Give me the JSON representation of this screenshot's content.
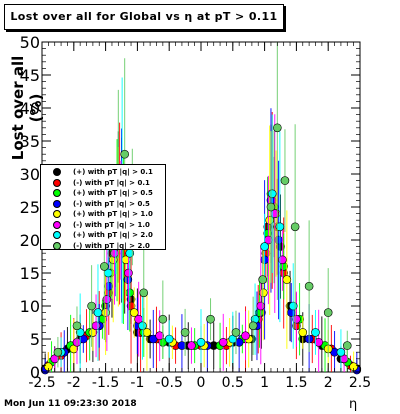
{
  "title": "Lost over all for Global vs   η at pT > 0.11",
  "timestamp": "Mon Jun 11 09:23:30 2018",
  "chart_data": {
    "type": "scatter",
    "xlabel": "η",
    "ylabel": "Lost over all (%)",
    "xlim": [
      -2.5,
      2.5
    ],
    "ylim": [
      0,
      50
    ],
    "xticks": [
      "-2.5",
      "-2",
      "-1.5",
      "-1",
      "-0.5",
      "0",
      "0.5",
      "1",
      "1.5",
      "2",
      "2.5"
    ],
    "yticks": [
      "0",
      "5",
      "10",
      "15",
      "20",
      "25",
      "30",
      "35",
      "40",
      "45",
      "50"
    ],
    "grid": false,
    "legend_position": "left",
    "series": [
      {
        "name": "(+) with pT |q| > 0.1",
        "color": "#000000",
        "x": [
          -2.45,
          -2.3,
          -2.1,
          -1.9,
          -1.7,
          -1.5,
          -1.4,
          -1.3,
          -1.25,
          -1.2,
          -1.1,
          -1.0,
          -0.8,
          -0.5,
          -0.2,
          0.2,
          0.5,
          0.8,
          0.95,
          1.05,
          1.1,
          1.15,
          1.25,
          1.4,
          1.6,
          1.9,
          2.2,
          2.45
        ],
        "y": [
          0.5,
          2,
          3.5,
          5,
          6,
          10,
          18,
          25,
          23,
          19,
          11,
          6,
          5,
          4.5,
          4,
          4,
          4.5,
          5,
          9,
          22,
          27,
          25,
          19,
          10,
          5,
          4,
          2,
          0.5
        ]
      },
      {
        "name": "(-) with pT |q| > 0.1",
        "color": "#ff0000",
        "x": [
          -2.4,
          -2.2,
          -2.0,
          -1.8,
          -1.6,
          -1.45,
          -1.35,
          -1.28,
          -1.2,
          -1.1,
          -0.95,
          -0.7,
          -0.4,
          0.0,
          0.4,
          0.7,
          0.9,
          1.02,
          1.12,
          1.2,
          1.3,
          1.5,
          1.75,
          2.05,
          2.35
        ],
        "y": [
          1,
          2.5,
          4,
          5.5,
          7,
          12,
          20,
          24,
          18,
          10,
          6,
          5,
          4,
          4,
          4,
          5,
          8,
          18,
          26,
          22,
          15,
          7,
          5,
          3.5,
          1
        ]
      },
      {
        "name": "(+) with pT |q| > 0.5",
        "color": "#00ff00",
        "x": [
          -2.35,
          -2.05,
          -1.75,
          -1.55,
          -1.42,
          -1.32,
          -1.22,
          -1.12,
          -0.9,
          -0.6,
          -0.1,
          0.3,
          0.65,
          0.92,
          1.05,
          1.15,
          1.3,
          1.55,
          1.95,
          2.3
        ],
        "y": [
          1.5,
          4,
          6,
          8,
          15,
          23,
          20,
          12,
          6,
          4.5,
          4,
          4,
          5,
          9,
          21,
          25,
          16,
          8,
          4,
          1.5
        ]
      },
      {
        "name": "(-) with pT |q| > 0.5",
        "color": "#0000ff",
        "x": [
          -2.45,
          -2.15,
          -1.85,
          -1.6,
          -1.45,
          -1.35,
          -1.25,
          -1.15,
          -1.0,
          -0.75,
          -0.3,
          0.1,
          0.6,
          0.88,
          1.0,
          1.1,
          1.22,
          1.42,
          1.7,
          2.1,
          2.45
        ],
        "y": [
          0.3,
          3,
          5,
          7,
          13,
          21,
          24,
          14,
          7,
          5,
          4,
          4,
          4.5,
          7,
          17,
          26,
          20,
          9,
          5,
          3,
          0.3
        ]
      },
      {
        "name": "(+) with pT |q| > 1.0",
        "color": "#ffff00",
        "x": [
          -2.4,
          -2.0,
          -1.7,
          -1.5,
          -1.38,
          -1.3,
          -1.18,
          -1.05,
          -0.85,
          -0.45,
          0.05,
          0.45,
          0.75,
          0.98,
          1.08,
          1.18,
          1.35,
          1.6,
          2.0,
          2.4
        ],
        "y": [
          0.8,
          3.5,
          6,
          9,
          17,
          22,
          17,
          9,
          6,
          4.5,
          4,
          4.5,
          5,
          12,
          23,
          24,
          14,
          6,
          3.5,
          0.8
        ]
      },
      {
        "name": "(-) with pT |q| > 1.0",
        "color": "#ff00ff",
        "x": [
          -2.3,
          -1.95,
          -1.65,
          -1.48,
          -1.36,
          -1.26,
          -1.14,
          -0.98,
          -0.65,
          -0.15,
          0.35,
          0.7,
          0.94,
          1.06,
          1.16,
          1.28,
          1.5,
          1.85,
          2.25
        ],
        "y": [
          2,
          4.5,
          7,
          11,
          18,
          23,
          15,
          8,
          5.5,
          4,
          4.5,
          5.5,
          10,
          20,
          24,
          17,
          8,
          4.5,
          2
        ]
      },
      {
        "name": "(+) with pT |q| > 2.0",
        "color": "#00ffff",
        "x": [
          -2.2,
          -1.9,
          -1.62,
          -1.46,
          -1.34,
          -1.24,
          -1.12,
          -0.92,
          -0.5,
          0.0,
          0.5,
          0.85,
          1.0,
          1.12,
          1.24,
          1.45,
          1.8,
          2.2
        ],
        "y": [
          3,
          6,
          9,
          15,
          22,
          26,
          18,
          7,
          5,
          4.5,
          5,
          8,
          19,
          27,
          22,
          10,
          6,
          3
        ]
      },
      {
        "name": "(-) with pT |q| > 2.0",
        "color": "#66cc66",
        "x": [
          -2.25,
          -1.95,
          -1.72,
          -1.52,
          -1.4,
          -1.3,
          -1.2,
          -1.08,
          -0.9,
          -0.6,
          -0.25,
          0.15,
          0.55,
          0.82,
          0.97,
          1.1,
          1.2,
          1.32,
          1.48,
          1.7,
          2.0,
          2.3
        ],
        "y": [
          3,
          7,
          10,
          16,
          21,
          30,
          33,
          25,
          12,
          8,
          6,
          8,
          6,
          7,
          14,
          25,
          37,
          29,
          22,
          13,
          9,
          4
        ]
      }
    ]
  }
}
